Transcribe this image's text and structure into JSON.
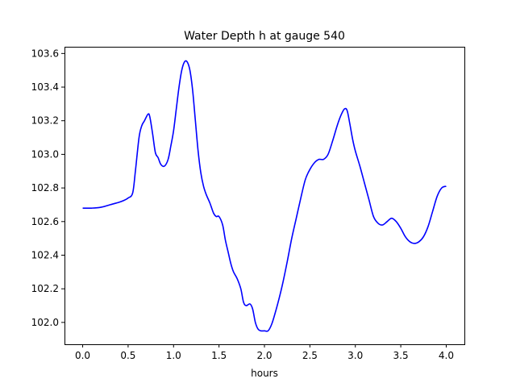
{
  "chart_data": {
    "type": "line",
    "title": "Water Depth h at gauge 540",
    "xlabel": "hours",
    "ylabel": "",
    "xlim": [
      -0.2,
      4.2
    ],
    "ylim": [
      101.87,
      103.64
    ],
    "xticks": [
      0.0,
      0.5,
      1.0,
      1.5,
      2.0,
      2.5,
      3.0,
      3.5,
      4.0
    ],
    "xtick_labels": [
      "0.0",
      "0.5",
      "1.0",
      "1.5",
      "2.0",
      "2.5",
      "3.0",
      "3.5",
      "4.0"
    ],
    "yticks": [
      102.0,
      102.2,
      102.4,
      102.6,
      102.8,
      103.0,
      103.2,
      103.4,
      103.6
    ],
    "ytick_labels": [
      "102.0",
      "102.2",
      "102.4",
      "102.6",
      "102.8",
      "103.0",
      "103.2",
      "103.4",
      "103.6"
    ],
    "grid": false,
    "legend": "none",
    "series": [
      {
        "color": "#0000ff",
        "x": [
          0.0,
          0.1,
          0.2,
          0.3,
          0.4,
          0.45,
          0.5,
          0.55,
          0.58,
          0.62,
          0.65,
          0.68,
          0.72,
          0.74,
          0.77,
          0.8,
          0.83,
          0.86,
          0.9,
          0.94,
          0.97,
          1.0,
          1.03,
          1.06,
          1.09,
          1.12,
          1.15,
          1.18,
          1.21,
          1.24,
          1.27,
          1.3,
          1.33,
          1.36,
          1.4,
          1.44,
          1.47,
          1.5,
          1.54,
          1.57,
          1.6,
          1.63,
          1.66,
          1.7,
          1.74,
          1.77,
          1.8,
          1.84,
          1.87,
          1.9,
          1.93,
          1.96,
          2.0,
          2.04,
          2.08,
          2.12,
          2.16,
          2.2,
          2.25,
          2.3,
          2.35,
          2.4,
          2.45,
          2.5,
          2.55,
          2.6,
          2.65,
          2.7,
          2.75,
          2.8,
          2.84,
          2.88,
          2.91,
          2.94,
          2.97,
          3.0,
          3.05,
          3.1,
          3.15,
          3.2,
          3.25,
          3.3,
          3.35,
          3.4,
          3.45,
          3.5,
          3.55,
          3.6,
          3.65,
          3.7,
          3.75,
          3.8,
          3.85,
          3.9,
          3.95,
          4.0
        ],
        "y": [
          102.68,
          102.68,
          102.685,
          102.7,
          102.715,
          102.725,
          102.74,
          102.77,
          102.9,
          103.1,
          103.17,
          103.2,
          103.24,
          103.22,
          103.12,
          103.01,
          102.98,
          102.94,
          102.93,
          102.97,
          103.05,
          103.14,
          103.27,
          103.4,
          103.5,
          103.55,
          103.55,
          103.5,
          103.38,
          103.2,
          103.02,
          102.89,
          102.81,
          102.76,
          102.71,
          102.65,
          102.63,
          102.63,
          102.58,
          102.49,
          102.42,
          102.35,
          102.3,
          102.26,
          102.2,
          102.12,
          102.1,
          102.11,
          102.08,
          102.0,
          101.96,
          101.95,
          101.95,
          101.95,
          101.99,
          102.06,
          102.14,
          102.23,
          102.36,
          102.5,
          102.62,
          102.74,
          102.85,
          102.91,
          102.95,
          102.97,
          102.97,
          103.0,
          103.08,
          103.17,
          103.23,
          103.27,
          103.26,
          103.18,
          103.09,
          103.02,
          102.93,
          102.83,
          102.73,
          102.63,
          102.59,
          102.58,
          102.6,
          102.62,
          102.6,
          102.56,
          102.51,
          102.48,
          102.47,
          102.48,
          102.51,
          102.57,
          102.66,
          102.75,
          102.8,
          102.81
        ]
      }
    ]
  }
}
